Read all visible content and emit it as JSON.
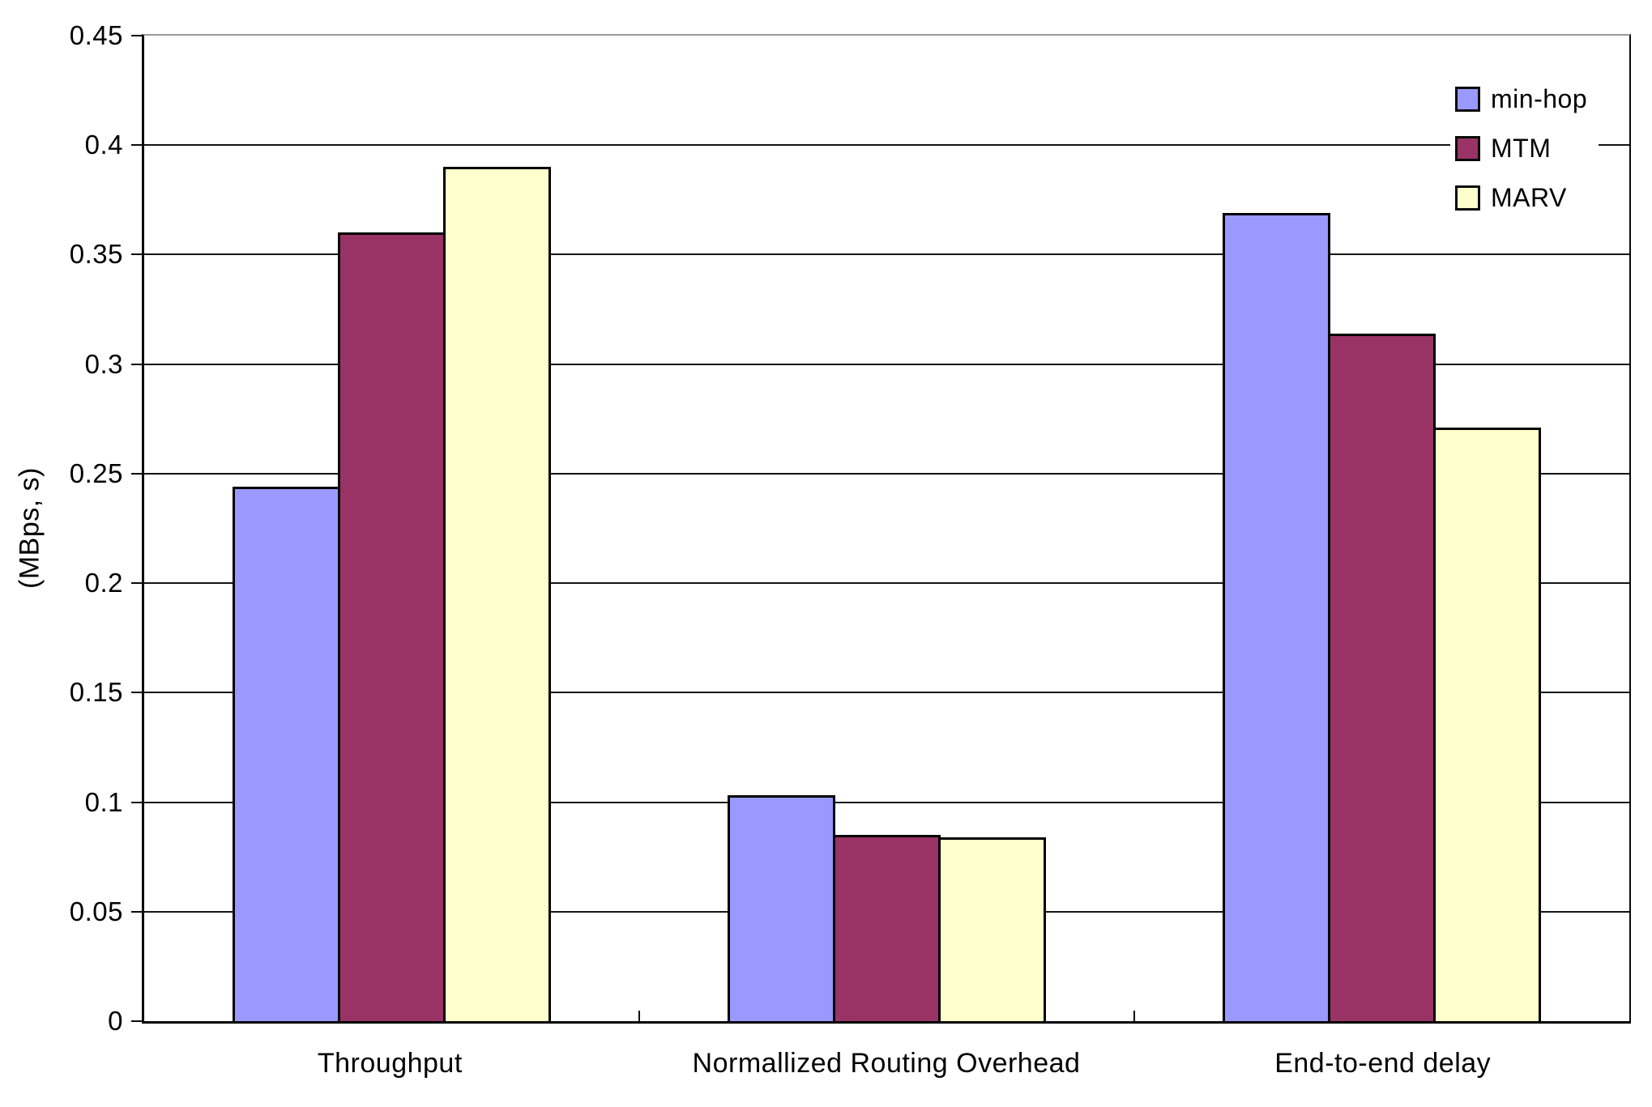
{
  "chart_data": {
    "type": "bar",
    "title": "",
    "xlabel": "",
    "ylabel": "(MBps, s)",
    "ylim": [
      0,
      0.45
    ],
    "grid": "horizontal",
    "legend_position": "top-right-inside",
    "categories": [
      "Throughput",
      "Normallized Routing Overhead",
      "End-to-end delay"
    ],
    "series": [
      {
        "name": "min-hop",
        "color": "#9999FF",
        "values": [
          0.244,
          0.103,
          0.369
        ]
      },
      {
        "name": "MTM",
        "color": "#993366",
        "values": [
          0.36,
          0.085,
          0.314
        ]
      },
      {
        "name": "MARV",
        "color": "#FFFFCC",
        "values": [
          0.39,
          0.084,
          0.271
        ]
      }
    ],
    "yticks": [
      {
        "value": 0,
        "label": "0"
      },
      {
        "value": 0.05,
        "label": "0.05"
      },
      {
        "value": 0.1,
        "label": "0.1"
      },
      {
        "value": 0.15,
        "label": "0.15"
      },
      {
        "value": 0.2,
        "label": "0.2"
      },
      {
        "value": 0.25,
        "label": "0.25"
      },
      {
        "value": 0.3,
        "label": "0.3"
      },
      {
        "value": 0.35,
        "label": "0.35"
      },
      {
        "value": 0.4,
        "label": "0.4"
      },
      {
        "value": 0.45,
        "label": "0.45"
      }
    ],
    "colors": {
      "axis": "#000000",
      "grid": "#141414",
      "bar_border": "#000000",
      "background": "#ffffff",
      "text": "#000000"
    }
  }
}
